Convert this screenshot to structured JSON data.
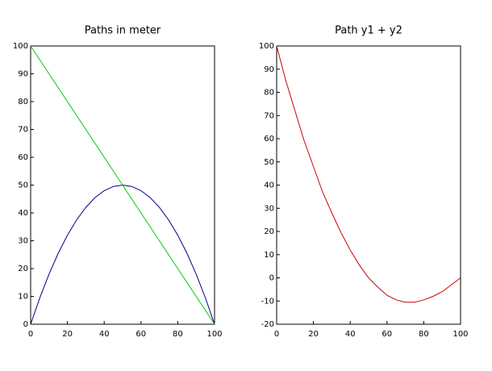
{
  "chart_data": [
    {
      "type": "line",
      "title": "Paths in meter",
      "x": [
        0,
        5,
        10,
        15,
        20,
        25,
        30,
        35,
        40,
        45,
        50,
        55,
        60,
        65,
        70,
        75,
        80,
        85,
        90,
        95,
        100
      ],
      "series": [
        {
          "color": "#00008b",
          "values": [
            0,
            9.5,
            18,
            25.5,
            32,
            37.5,
            42,
            45.5,
            48,
            49.5,
            50,
            49.5,
            48,
            45.5,
            42,
            37.5,
            32,
            25.5,
            18,
            9.5,
            0
          ]
        },
        {
          "color": "#00cc00",
          "values": [
            100,
            95,
            90,
            85,
            80,
            75,
            70,
            65,
            60,
            55,
            50,
            45,
            40,
            35,
            30,
            25,
            20,
            15,
            10,
            5,
            0
          ]
        }
      ],
      "xlim": [
        0,
        100
      ],
      "xticks": [
        0,
        20,
        40,
        60,
        80,
        100
      ],
      "ylim": [
        0,
        100
      ],
      "yticks": [
        0,
        10,
        20,
        30,
        40,
        50,
        60,
        70,
        80,
        90,
        100
      ]
    },
    {
      "type": "line",
      "title": "Path y1 + y2",
      "x": [
        0,
        5,
        10,
        15,
        20,
        25,
        30,
        35,
        40,
        45,
        50,
        55,
        60,
        65,
        70,
        75,
        80,
        85,
        90,
        95,
        100
      ],
      "series": [
        {
          "color": "#cc0000",
          "values": [
            100,
            85,
            72,
            59,
            48,
            37,
            28,
            19.5,
            12,
            5.5,
            0,
            -4,
            -7.5,
            -9.5,
            -10.5,
            -10.5,
            -9.5,
            -8,
            -6,
            -3,
            0
          ]
        }
      ],
      "xlim": [
        0,
        100
      ],
      "xticks": [
        0,
        20,
        40,
        60,
        80,
        100
      ],
      "ylim": [
        -20,
        100
      ],
      "yticks": [
        -20,
        -10,
        0,
        10,
        20,
        30,
        40,
        50,
        60,
        70,
        80,
        90,
        100
      ]
    }
  ]
}
